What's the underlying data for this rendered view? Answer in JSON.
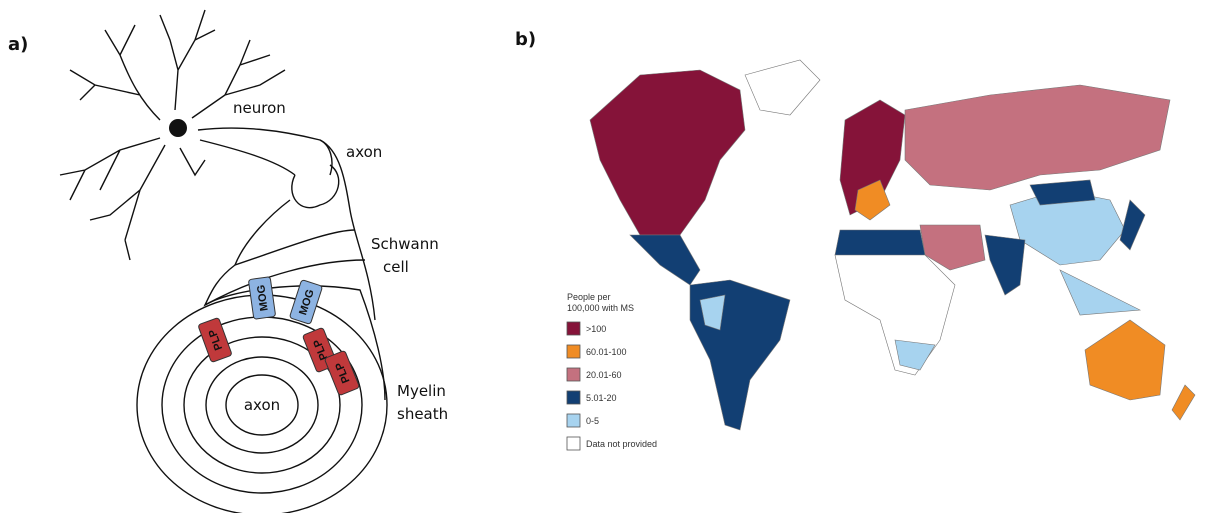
{
  "panel_a": {
    "label": "a)",
    "neuron": "neuron",
    "axon_top": "axon",
    "schwann": [
      "Schwann",
      "cell"
    ],
    "myelin": [
      "Myelin",
      "sheath"
    ],
    "axon_center": "axon",
    "proteins": [
      {
        "label": "MOG",
        "color": "#8db3e2"
      },
      {
        "label": "MOG",
        "color": "#8db3e2"
      },
      {
        "label": "PLP",
        "color": "#c0393b"
      },
      {
        "label": "PLP",
        "color": "#c0393b"
      },
      {
        "label": "PLP",
        "color": "#c0393b"
      }
    ]
  },
  "panel_b": {
    "label": "b)",
    "legend_title": [
      "People per",
      "100,000 with MS"
    ],
    "legend": [
      {
        "label": ">100",
        "color": "#851339"
      },
      {
        "label": "60.01-100",
        "color": "#f08c24"
      },
      {
        "label": "20.01-60",
        "color": "#c4717f"
      },
      {
        "label": "5.01-20",
        "color": "#123f73"
      },
      {
        "label": "0-5",
        "color": "#a7d3ef"
      },
      {
        "label": "Data not provided",
        "color": "#ffffff"
      }
    ]
  }
}
